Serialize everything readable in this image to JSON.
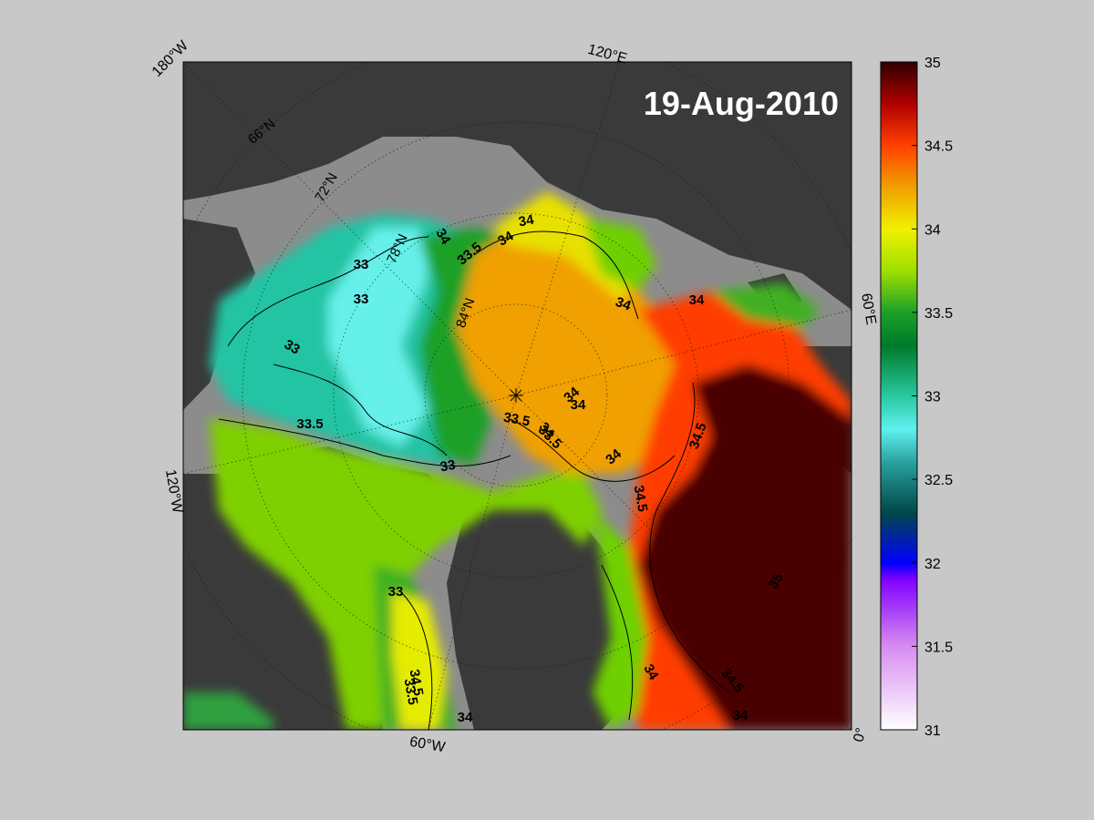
{
  "map": {
    "date_label": "19-Aug-2010",
    "longitude_labels": [
      "180°W",
      "120°E",
      "60°E",
      "0°",
      "60°W",
      "120°W"
    ],
    "latitude_labels": [
      "66°N",
      "72°N",
      "78°N",
      "84°N"
    ],
    "contour_labels": [
      "34",
      "34",
      "33",
      "33.5",
      "34",
      "33",
      "33",
      "33",
      "34",
      "33.5",
      "34",
      "34",
      "34",
      "33.5",
      "34",
      "33",
      "34",
      "34.5",
      "34.5",
      "34.5",
      "34.5",
      "33.5",
      "34",
      "34",
      "33.5",
      "34",
      "35"
    ],
    "colors": {
      "figure_background": "#c8c8c8",
      "land": "#3a3a3a",
      "shelf": "#8c8c8c",
      "low_salinity": "#22c4a4",
      "high_salinity": "#4a0000"
    }
  },
  "colorbar": {
    "tick_labels": [
      "35",
      "34.5",
      "34",
      "33.5",
      "33",
      "32.5",
      "32",
      "31.5",
      "31"
    ],
    "range": [
      31,
      35
    ],
    "stops": [
      {
        "value": 31.0,
        "color": "#ffffff"
      },
      {
        "value": 31.5,
        "color": "#d78cf0"
      },
      {
        "value": 31.9,
        "color": "#8000ff"
      },
      {
        "value": 32.0,
        "color": "#0000ff"
      },
      {
        "value": 32.3,
        "color": "#004848"
      },
      {
        "value": 32.6,
        "color": "#2aa0a0"
      },
      {
        "value": 32.8,
        "color": "#60f0f0"
      },
      {
        "value": 33.0,
        "color": "#28c8a0"
      },
      {
        "value": 33.3,
        "color": "#007a2a"
      },
      {
        "value": 33.5,
        "color": "#1ca028"
      },
      {
        "value": 33.75,
        "color": "#a0e000"
      },
      {
        "value": 34.0,
        "color": "#f0f000"
      },
      {
        "value": 34.25,
        "color": "#f0a000"
      },
      {
        "value": 34.5,
        "color": "#ff4000"
      },
      {
        "value": 34.75,
        "color": "#b00000"
      },
      {
        "value": 35.0,
        "color": "#300000"
      }
    ]
  }
}
